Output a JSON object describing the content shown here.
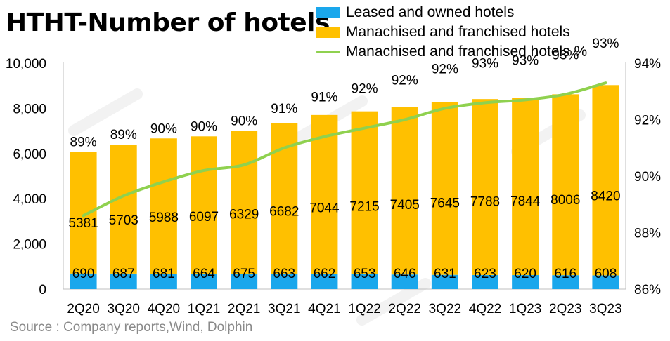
{
  "title": "HTHT-Number of hotels",
  "source": "Source : Company reports,Wind, Dolphin",
  "colors": {
    "leased": "#1aa7ec",
    "franchised": "#ffc000",
    "line": "#8fd14f"
  },
  "chart_data": {
    "type": "bar",
    "stacked": true,
    "categories": [
      "2Q20",
      "3Q20",
      "4Q20",
      "1Q21",
      "2Q21",
      "3Q21",
      "4Q21",
      "1Q22",
      "2Q22",
      "3Q22",
      "4Q22",
      "1Q23",
      "2Q23",
      "3Q23"
    ],
    "series": [
      {
        "name": "Leased and owned hotels",
        "type": "bar",
        "values": [
          690,
          687,
          681,
          664,
          675,
          663,
          662,
          653,
          646,
          631,
          623,
          620,
          616,
          608
        ]
      },
      {
        "name": "Manachised and franchised hotels",
        "type": "bar",
        "values": [
          5381,
          5703,
          5988,
          6097,
          6329,
          6682,
          7044,
          7215,
          7405,
          7645,
          7788,
          7844,
          8006,
          8420
        ]
      },
      {
        "name": "Manachised and franchised hotels %",
        "type": "line",
        "axis": "right",
        "values": [
          88.6,
          89.3,
          89.8,
          90.2,
          90.4,
          91.0,
          91.4,
          91.7,
          92.0,
          92.4,
          92.6,
          92.7,
          92.9,
          93.3
        ],
        "labels": [
          "89%",
          "89%",
          "90%",
          "90%",
          "90%",
          "91%",
          "91%",
          "92%",
          "92%",
          "92%",
          "93%",
          "93%",
          "93%",
          "93%"
        ]
      }
    ],
    "yleft": {
      "min": 0,
      "max": 10000,
      "ticks": [
        0,
        2000,
        4000,
        6000,
        8000,
        10000
      ],
      "tick_labels": [
        "0",
        "2,000",
        "4,000",
        "6,000",
        "8,000",
        "10,000"
      ]
    },
    "yright": {
      "min": 86,
      "max": 94,
      "ticks": [
        86,
        88,
        90,
        92,
        94
      ],
      "tick_labels": [
        "86%",
        "88%",
        "90%",
        "92%",
        "94%"
      ]
    },
    "legend_position": "top-right",
    "grid": false
  }
}
